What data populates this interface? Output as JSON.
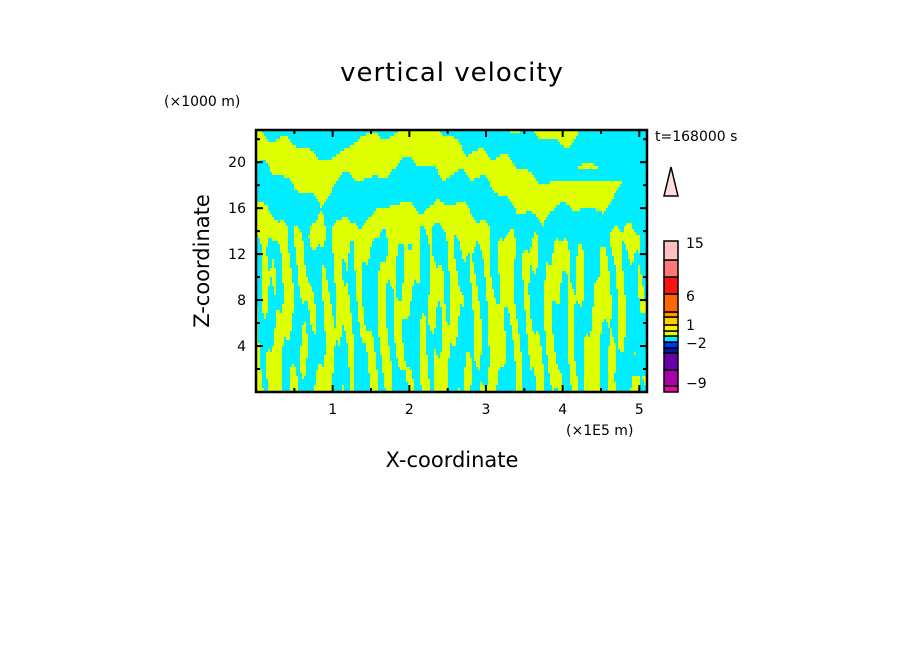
{
  "chart_data": {
    "type": "heatmap",
    "title": "vertical velocity",
    "xlabel": "X-coordinate",
    "ylabel": "Z-coordinate",
    "x_unit": "(×1E5 m)",
    "y_unit": "(×1000 m)",
    "annotation": "t=168000 s",
    "xlim": [
      0,
      5.1
    ],
    "ylim": [
      0,
      22.8
    ],
    "x_ticks": [
      "1",
      "2",
      "3",
      "4",
      "5"
    ],
    "y_ticks": [
      "4",
      "8",
      "12",
      "16",
      "20"
    ],
    "field_colors": {
      "negative_small": "#00eeff",
      "positive_small": "#ddff00"
    },
    "colorbar": {
      "colors": [
        "#ee00aa",
        "#aa00aa",
        "#6a00aa",
        "#001a99",
        "#0033ff",
        "#00eeff",
        "#ddff00",
        "#ffee00",
        "#ffcc00",
        "#ff9900",
        "#ff6600",
        "#ff1111",
        "#ff7777",
        "#ffc0c0",
        "#ffdcdc"
      ],
      "labels": [
        "-9",
        "-2",
        "1",
        "6",
        "15"
      ]
    },
    "axis_color": "#000000"
  }
}
